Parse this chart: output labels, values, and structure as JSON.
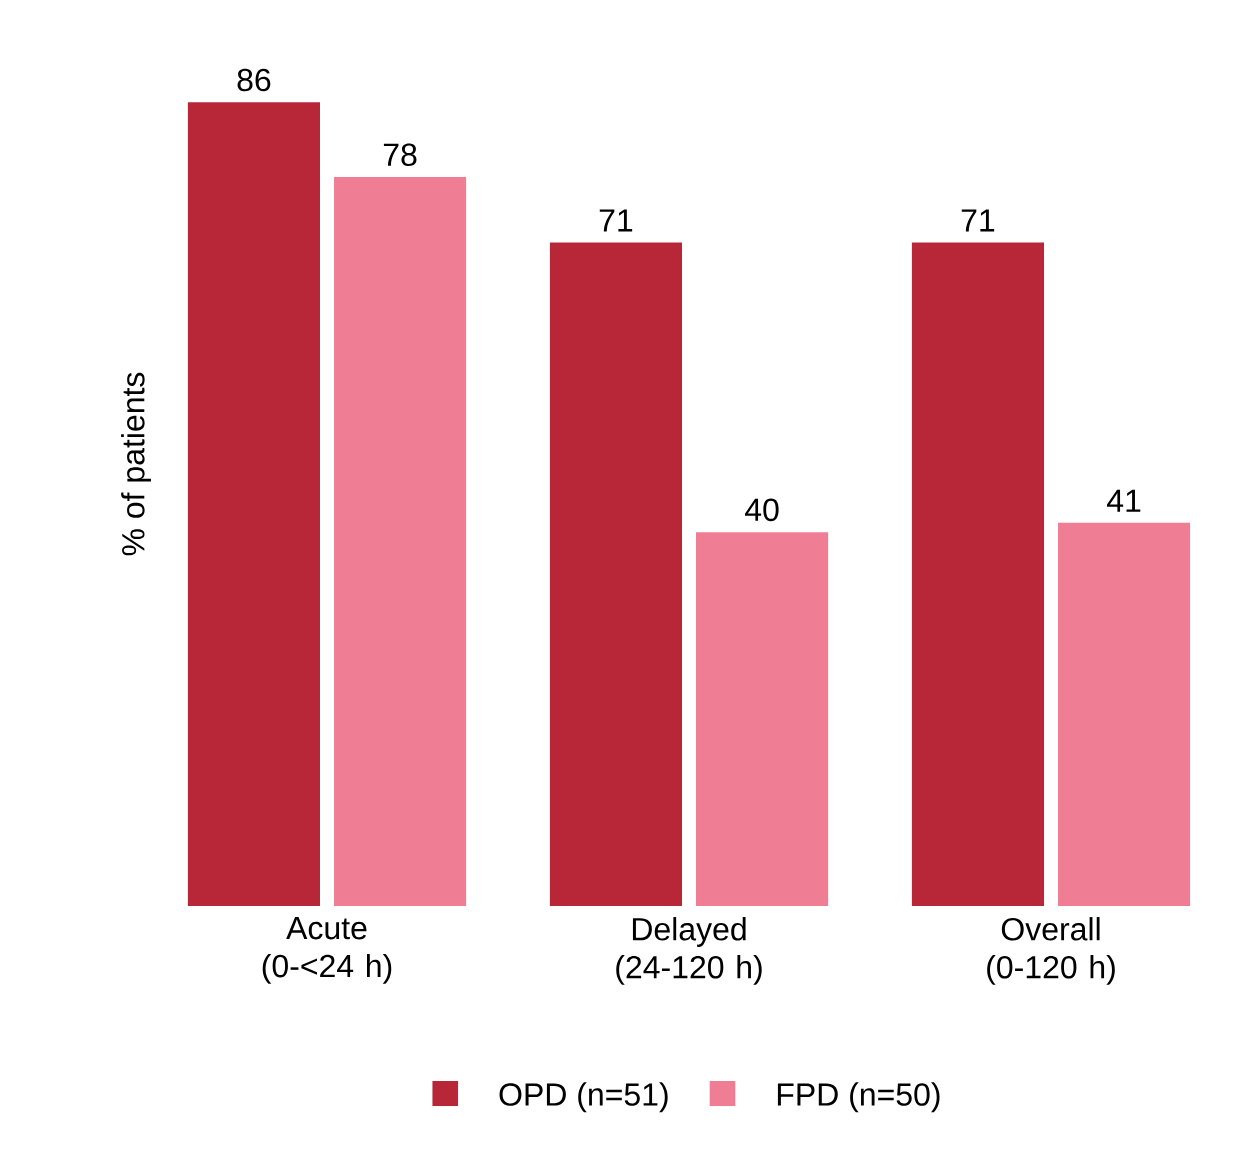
{
  "chart_data": {
    "type": "bar",
    "ylabel": "% of patients",
    "categories": [
      "Acute (0-<24 h)",
      "Delayed (24-120 h)",
      "Overall (0-120 h)"
    ],
    "series": [
      {
        "name": "OPD (n=51)",
        "color": "#b82738",
        "values": [
          86,
          71,
          71
        ]
      },
      {
        "name": "FPD (n=50)",
        "color": "#ef7e94",
        "values": [
          78,
          40,
          41
        ]
      }
    ],
    "data_labels": true,
    "legend": "bottom"
  }
}
